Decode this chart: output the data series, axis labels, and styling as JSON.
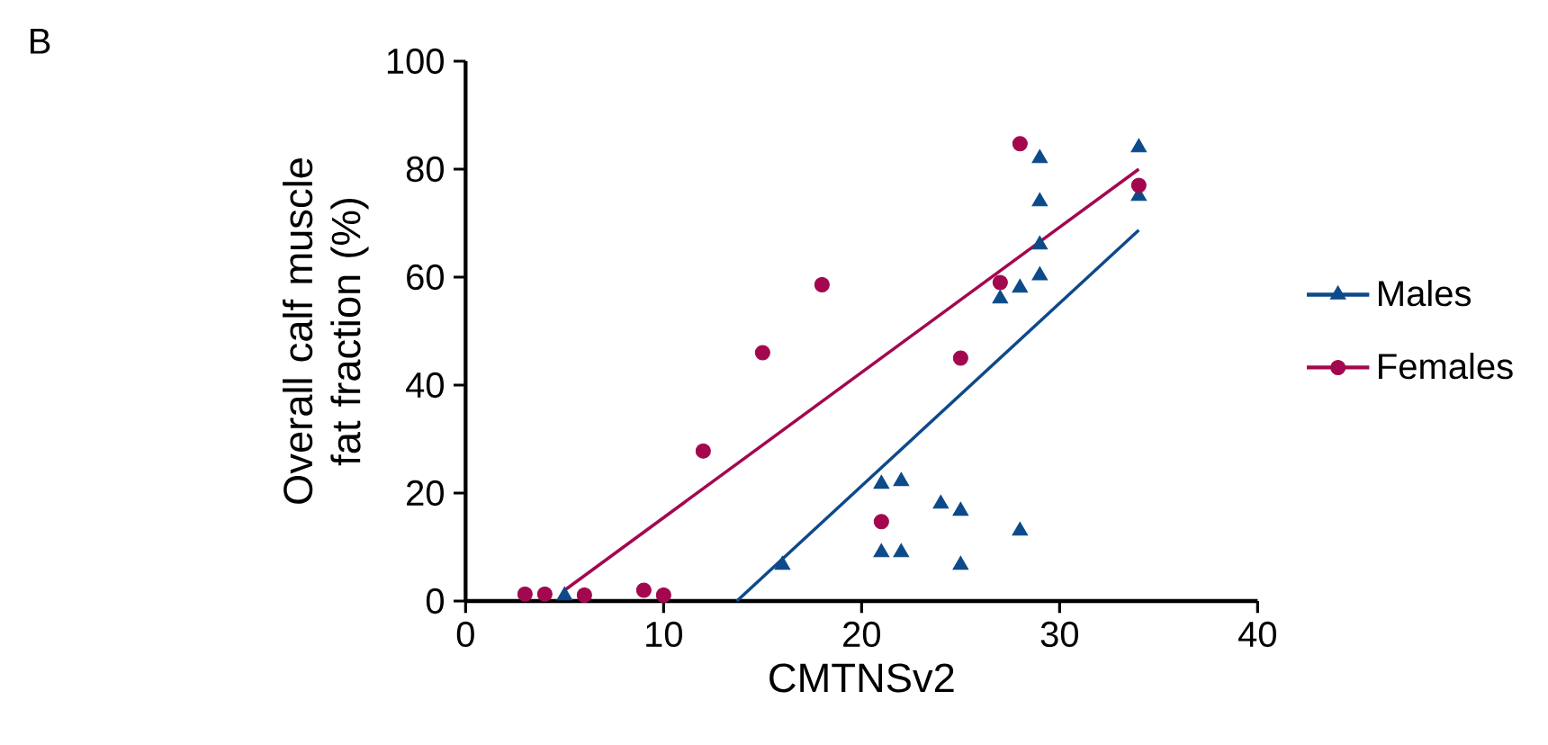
{
  "chart_data": {
    "type": "scatter",
    "xlabel": "CMTNSv2",
    "ylabel": "Overall calf muscle fat fraction (%)",
    "annotations": [
      "B"
    ],
    "xlim": [
      0,
      40
    ],
    "ylim": [
      0,
      100
    ],
    "xticks": [
      0,
      10,
      20,
      30,
      40
    ],
    "yticks": [
      0,
      20,
      40,
      60,
      80,
      100
    ],
    "legend": "right",
    "series": [
      {
        "name": "Males",
        "type": "scatter",
        "marker": "triangle",
        "color": "#0d4a8a",
        "x": [
          5,
          16,
          21,
          22,
          21,
          22,
          24,
          25,
          25,
          28,
          29,
          29,
          29,
          29,
          28,
          27,
          34,
          34
        ],
        "values": [
          1,
          6.7,
          21.7,
          22.2,
          9,
          9,
          18,
          16.7,
          6.7,
          13,
          82,
          74,
          66,
          60.3,
          58,
          56,
          84,
          75
        ]
      },
      {
        "name": "Females",
        "type": "scatter",
        "marker": "circle",
        "color": "#a3084f",
        "x": [
          3,
          4,
          6,
          9,
          10,
          12,
          15,
          18,
          21,
          25,
          27,
          28,
          34
        ],
        "values": [
          1.3,
          1.3,
          1.1,
          2,
          1.1,
          27.8,
          46,
          58.6,
          14.7,
          45,
          59,
          84.7,
          77
        ]
      },
      {
        "type": "line",
        "color": "#0d4a8a",
        "x": [
          13.7,
          34
        ],
        "values": [
          0,
          68.7
        ]
      },
      {
        "type": "line",
        "color": "#a3084f",
        "x": [
          5,
          34
        ],
        "values": [
          2,
          80
        ]
      }
    ]
  }
}
